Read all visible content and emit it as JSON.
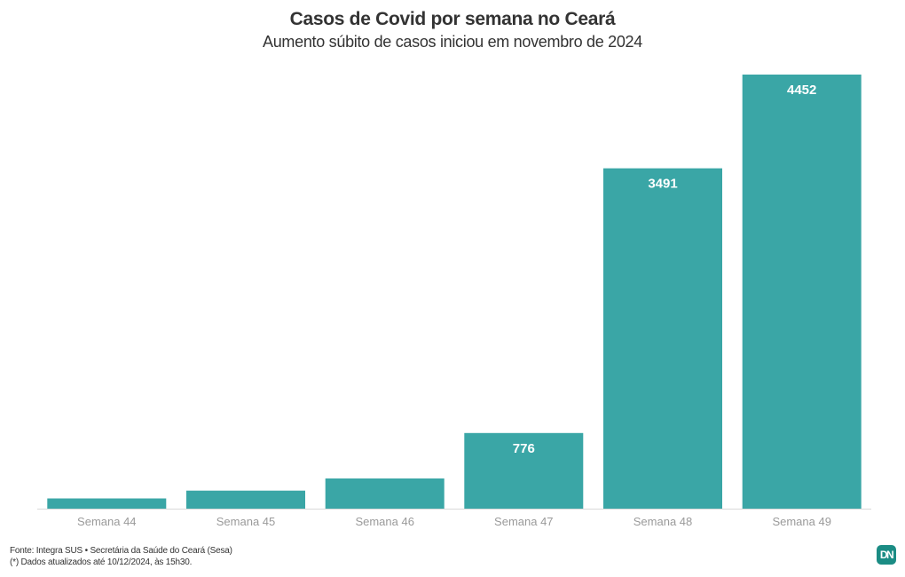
{
  "chart_data": {
    "type": "bar",
    "title": "Casos de Covid por semana no Ceará",
    "subtitle": "Aumento súbito de casos iniciou em novembro de 2024",
    "categories": [
      "Semana 44",
      "Semana 45",
      "Semana 46",
      "Semana 47",
      "Semana 48",
      "Semana 49"
    ],
    "values": [
      105,
      185,
      310,
      776,
      3491,
      4452
    ],
    "data_labels": [
      "",
      "",
      "",
      "776",
      "3491",
      "4452"
    ],
    "xlabel": "",
    "ylabel": "",
    "ylim": [
      0,
      4452
    ],
    "grid": false,
    "legend": "none",
    "colors": {
      "bar": "#3aa6a6",
      "data_label": "#ffffff",
      "tick_label": "#9a9a9a",
      "baseline": "#d9d9d9"
    }
  },
  "footer": {
    "source": "Fonte: Integra SUS • Secretária da Saúde do Ceará (Sesa)",
    "note": "(*) Dados atualizados até 10/12/2024, às 15h30."
  },
  "logo": {
    "text": "DN",
    "color": "#1b8c84"
  }
}
